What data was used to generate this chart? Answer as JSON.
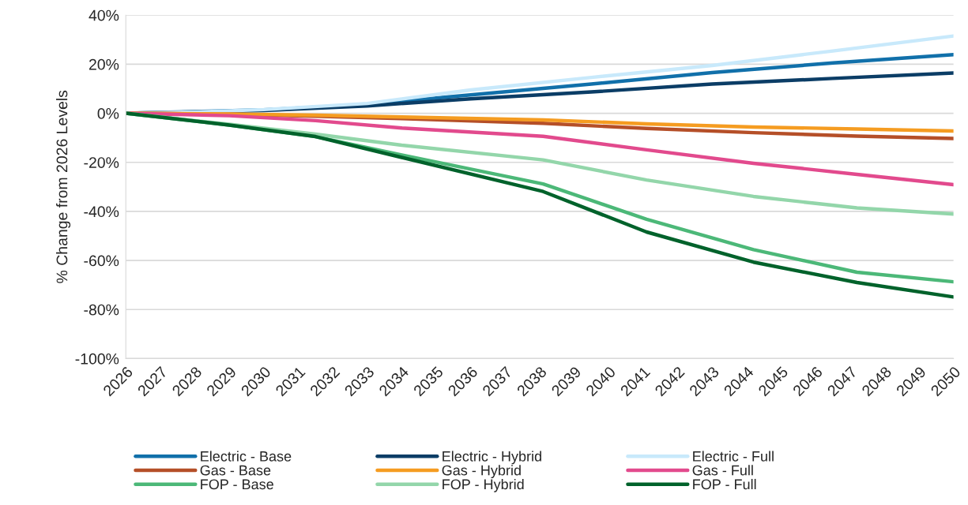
{
  "chart_data": {
    "type": "line",
    "ylabel": "% Change from 2026 Levels",
    "xlim": [
      2026,
      2050
    ],
    "xticks": [
      2026,
      2027,
      2028,
      2029,
      2030,
      2031,
      2032,
      2033,
      2034,
      2035,
      2036,
      2037,
      2038,
      2039,
      2040,
      2041,
      2042,
      2043,
      2044,
      2045,
      2046,
      2047,
      2048,
      2049,
      2050
    ],
    "ylim": [
      -100,
      40
    ],
    "yticks": [
      {
        "value": -100,
        "label": "-100%"
      },
      {
        "value": -80,
        "label": "-80%"
      },
      {
        "value": -60,
        "label": "-60%"
      },
      {
        "value": -40,
        "label": "-40%"
      },
      {
        "value": -20,
        "label": "-20%"
      },
      {
        "value": 0,
        "label": "0%"
      },
      {
        "value": 20,
        "label": "20%"
      },
      {
        "value": 40,
        "label": "40%"
      }
    ],
    "grid": "y",
    "legend": "bottom",
    "marker": "none",
    "line_style": "solid",
    "series": [
      {
        "name": "Electric - Base",
        "color": "#1170aa",
        "x": [
          2026,
          2030,
          2033,
          2036,
          2039.5,
          2043,
          2046.5,
          2050
        ],
        "values": [
          0,
          1.4,
          3.6,
          7.5,
          11.9,
          16.6,
          20.5,
          23.9
        ]
      },
      {
        "name": "Electric - Hybrid",
        "color": "#0b3d66",
        "x": [
          2026,
          2030,
          2033,
          2036,
          2039.5,
          2043,
          2046.5,
          2050
        ],
        "values": [
          0,
          1.1,
          3,
          5.9,
          8.7,
          11.9,
          14.2,
          16.4
        ]
      },
      {
        "name": "Electric - Full",
        "color": "#c8e9fb",
        "x": [
          2026,
          2028,
          2030,
          2033,
          2036,
          2039.5,
          2043,
          2046.5,
          2050
        ],
        "values": [
          0,
          0.5,
          1.5,
          4,
          9.5,
          14.6,
          19.5,
          25.4,
          31.5
        ]
      },
      {
        "name": "Gas - Base",
        "color": "#b54f28",
        "x": [
          2026,
          2029,
          2031.5,
          2034,
          2038.1,
          2041.1,
          2044.2,
          2047.2,
          2050
        ],
        "values": [
          0,
          -0.4,
          -1.2,
          -2.2,
          -4.1,
          -6.2,
          -7.9,
          -9.3,
          -10.3
        ]
      },
      {
        "name": "Gas - Hybrid",
        "color": "#f59c21",
        "x": [
          2026,
          2029,
          2031.5,
          2034,
          2038.1,
          2041.1,
          2044.2,
          2047.2,
          2050
        ],
        "values": [
          0,
          -0.3,
          -0.8,
          -1.5,
          -2.7,
          -4.3,
          -5.6,
          -6.4,
          -7.2
        ]
      },
      {
        "name": "Gas - Full",
        "color": "#e24a8d",
        "x": [
          2026,
          2029,
          2031.5,
          2034,
          2038.1,
          2041.1,
          2044.2,
          2047.2,
          2050
        ],
        "values": [
          0,
          -1,
          -3,
          -6,
          -9.4,
          -14.9,
          -20.4,
          -24.9,
          -29.1
        ]
      },
      {
        "name": "FOP - Base",
        "color": "#4cb878",
        "x": [
          2026,
          2029,
          2031.5,
          2034,
          2038.1,
          2041.1,
          2044.2,
          2047.2,
          2050
        ],
        "values": [
          0,
          -4.8,
          -9.5,
          -17,
          -28.8,
          -43.2,
          -55.6,
          -64.8,
          -68.7
        ]
      },
      {
        "name": "FOP - Hybrid",
        "color": "#93d6aa",
        "x": [
          2026,
          2029,
          2031.5,
          2034,
          2038.1,
          2041.1,
          2044.2,
          2047.2,
          2050
        ],
        "values": [
          0,
          -4.5,
          -8.5,
          -13,
          -19,
          -27.2,
          -33.9,
          -38.6,
          -41.1
        ]
      },
      {
        "name": "FOP - Full",
        "color": "#00622b",
        "x": [
          2026,
          2029,
          2031.5,
          2034,
          2038.1,
          2041.1,
          2044.2,
          2047.2,
          2050
        ],
        "values": [
          0,
          -4.8,
          -9.5,
          -18,
          -31.9,
          -48.4,
          -60.7,
          -69,
          -74.9
        ]
      }
    ]
  }
}
